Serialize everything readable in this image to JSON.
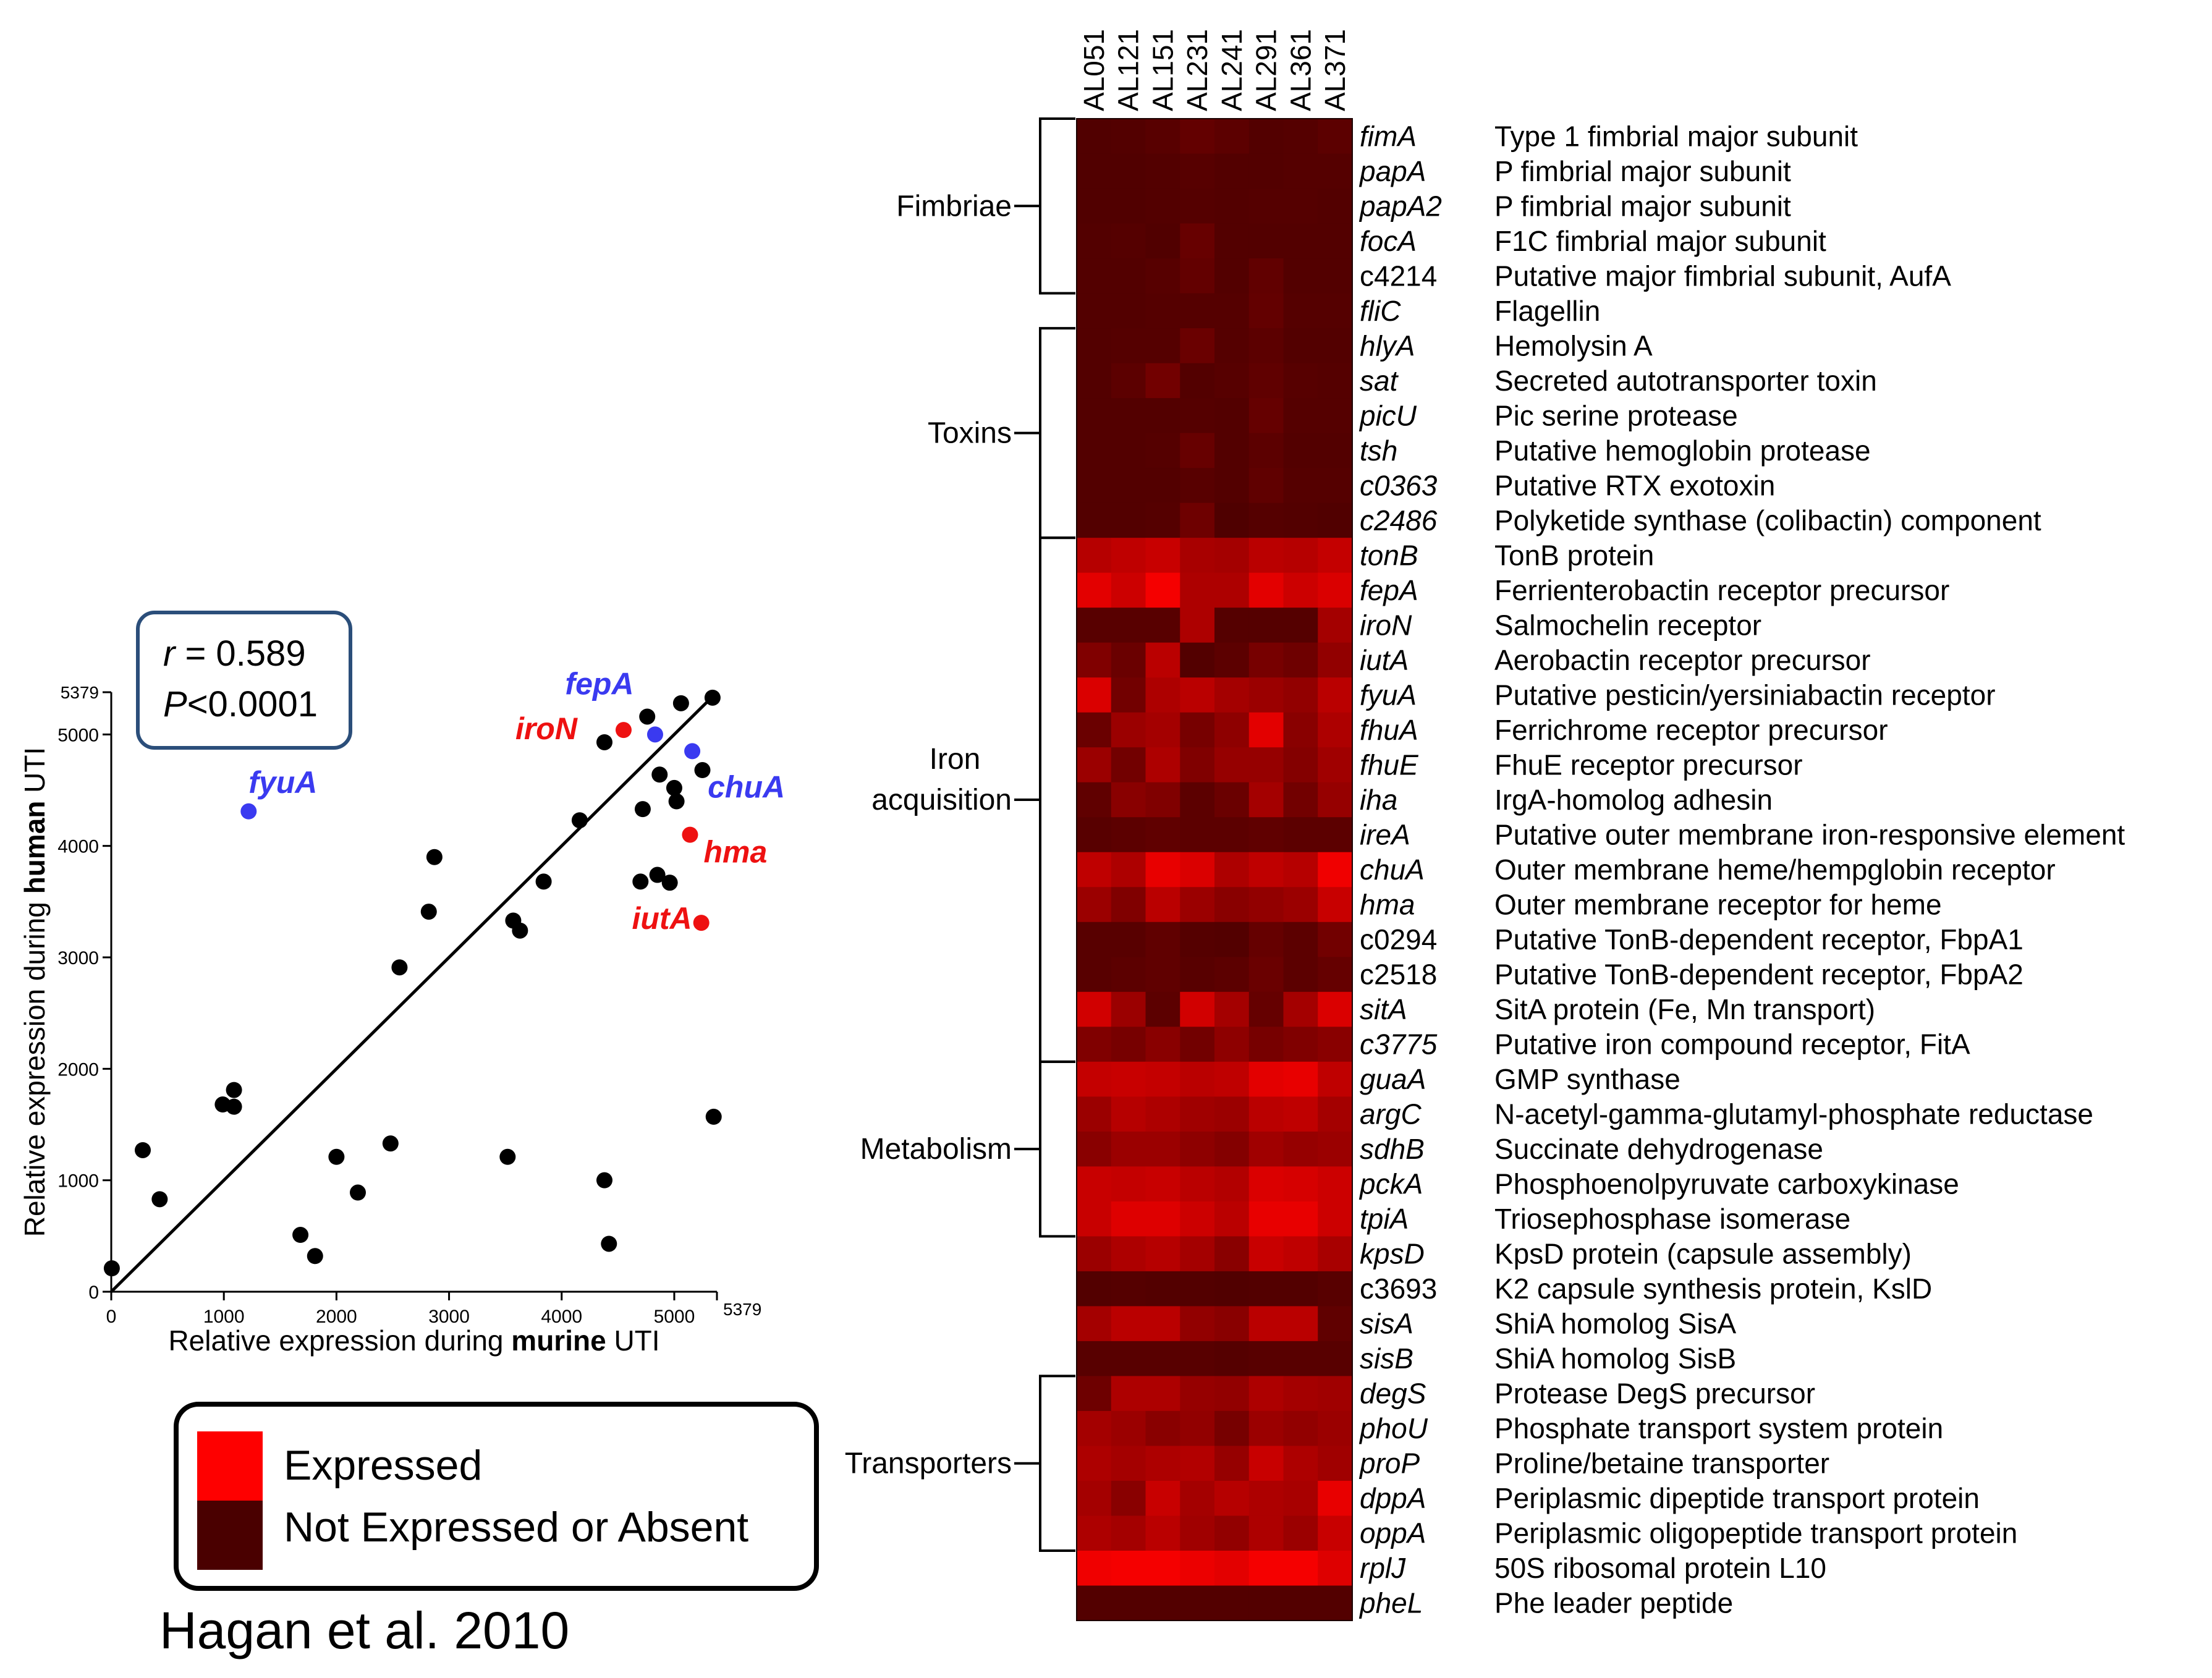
{
  "colors": {
    "black": "#000000",
    "blue": "#3a3af0",
    "red": "#ee1111",
    "box_border": "#2b4e7a"
  },
  "chart_data": [
    {
      "type": "scatter",
      "xlabel_prefix": "Relative expression during ",
      "xlabel_bold": "murine",
      "xlabel_suffix": " UTI",
      "ylabel_prefix": "Relative expression during ",
      "ylabel_bold": "human",
      "ylabel_suffix": " UTI",
      "xlim": [
        0,
        5379
      ],
      "ylim": [
        0,
        5379
      ],
      "xticks": [
        0,
        1000,
        2000,
        3000,
        4000,
        5000
      ],
      "yticks": [
        0,
        1000,
        2000,
        3000,
        4000,
        5000
      ],
      "max_label": "5379",
      "stats": {
        "r_symbol": "r",
        "r_value": " = 0.589",
        "p_symbol": "P",
        "p_value": "<0.0001"
      },
      "fit_line": {
        "x": [
          0,
          5379
        ],
        "y": [
          0,
          5379
        ]
      },
      "points": [
        {
          "x": 5,
          "y": 210
        },
        {
          "x": 280,
          "y": 1270
        },
        {
          "x": 430,
          "y": 830
        },
        {
          "x": 990,
          "y": 1680
        },
        {
          "x": 1090,
          "y": 1810
        },
        {
          "x": 1090,
          "y": 1660
        },
        {
          "x": 1680,
          "y": 510
        },
        {
          "x": 1810,
          "y": 320
        },
        {
          "x": 2000,
          "y": 1210
        },
        {
          "x": 2190,
          "y": 890
        },
        {
          "x": 2480,
          "y": 1330
        },
        {
          "x": 2560,
          "y": 2910
        },
        {
          "x": 2820,
          "y": 3410
        },
        {
          "x": 2870,
          "y": 3900
        },
        {
          "x": 3520,
          "y": 1210
        },
        {
          "x": 3570,
          "y": 3330
        },
        {
          "x": 3630,
          "y": 3240
        },
        {
          "x": 3840,
          "y": 3680
        },
        {
          "x": 4160,
          "y": 4230
        },
        {
          "x": 4380,
          "y": 1000
        },
        {
          "x": 4380,
          "y": 4930
        },
        {
          "x": 4420,
          "y": 430
        },
        {
          "x": 4700,
          "y": 3680
        },
        {
          "x": 4720,
          "y": 4330
        },
        {
          "x": 4760,
          "y": 5160
        },
        {
          "x": 4850,
          "y": 3740
        },
        {
          "x": 4870,
          "y": 4640
        },
        {
          "x": 4960,
          "y": 3670
        },
        {
          "x": 5000,
          "y": 4520
        },
        {
          "x": 5020,
          "y": 4400
        },
        {
          "x": 5060,
          "y": 5280
        },
        {
          "x": 5250,
          "y": 4680
        },
        {
          "x": 5340,
          "y": 5330
        },
        {
          "x": 5350,
          "y": 1570
        }
      ],
      "highlighted": [
        {
          "label": "fepA",
          "x": 4830,
          "y": 5000,
          "color": "blue"
        },
        {
          "label": "chuA",
          "x": 5160,
          "y": 4850,
          "color": "blue"
        },
        {
          "label": "fyuA",
          "x": 1220,
          "y": 4310,
          "color": "blue"
        },
        {
          "label": "iroN",
          "x": 4550,
          "y": 5040,
          "color": "red"
        },
        {
          "label": "hma",
          "x": 5140,
          "y": 4100,
          "color": "red"
        },
        {
          "label": "iutA",
          "x": 5240,
          "y": 3310,
          "color": "red"
        }
      ]
    },
    {
      "type": "heatmap",
      "columns": [
        "AL051",
        "AL121",
        "AL151",
        "AL231",
        "AL241",
        "AL291",
        "AL361",
        "AL371"
      ],
      "colormap": {
        "expressed": "#fe0000",
        "not_expressed": "#4a0000"
      },
      "genes": [
        "fimA",
        "papA",
        "papA2",
        "focA",
        "c4214",
        "fliC",
        "hlyA",
        "sat",
        "picU",
        "tsh",
        "c0363",
        "c2486",
        "tonB",
        "fepA",
        "iroN",
        "iutA",
        "fyuA",
        "fhuA",
        "fhuE",
        "iha",
        "ireA",
        "chuA",
        "hma",
        "c0294",
        "c2518",
        "sitA",
        "c3775",
        "guaA",
        "argC",
        "sdhB",
        "pckA",
        "tpiA",
        "kpsD",
        "c3693",
        "sisA",
        "sisB",
        "degS",
        "phoU",
        "proP",
        "dppA",
        "oppA",
        "rplJ",
        "pheL"
      ],
      "italic_genes": [
        "fimA",
        "papA",
        "papA2",
        "focA",
        "fliC",
        "hlyA",
        "sat",
        "picU",
        "tsh",
        "c0363",
        "c2486",
        "tonB",
        "fepA",
        "iroN",
        "iutA",
        "fyuA",
        "fhuA",
        "fhuE",
        "iha",
        "ireA",
        "chuA",
        "hma",
        "sitA",
        "c3775",
        "guaA",
        "argC",
        "sdhB",
        "pckA",
        "tpiA",
        "kpsD",
        "sisA",
        "sisB",
        "degS",
        "phoU",
        "proP",
        "dppA",
        "oppA",
        "rplJ",
        "pheL"
      ],
      "descriptions": [
        "Type 1 fimbrial major subunit",
        "P fimbrial major subunit",
        "P fimbrial major subunit",
        "F1C fimbrial major subunit",
        "Putative major fimbrial subunit, AufA",
        "Flagellin",
        "Hemolysin A",
        "Secreted autotransporter toxin",
        "Pic serine protease",
        "Putative hemoglobin protease",
        "Putative RTX exotoxin",
        "Polyketide synthase (colibactin) component",
        "TonB protein",
        "Ferrienterobactin receptor precursor",
        "Salmochelin receptor",
        "Aerobactin receptor precursor",
        "Putative pesticin/yersiniabactin receptor",
        "Ferrichrome receptor precursor",
        "FhuE receptor precursor",
        "IrgA-homolog adhesin",
        "Putative outer membrane iron-responsive element",
        "Outer membrane heme/hempglobin receptor",
        "Outer membrane receptor for heme",
        "Putative TonB-dependent receptor, FbpA1",
        "Putative TonB-dependent receptor, FbpA2",
        "SitA protein (Fe, Mn transport)",
        "Putative iron compound receptor, FitA",
        "GMP synthase",
        "N-acetyl-gamma-glutamyl-phosphate reductase",
        "Succinate dehydrogenase",
        "Phosphoenolpyruvate carboxykinase",
        "Triosephosphase isomerase",
        "KpsD protein (capsule assembly)",
        "K2 capsule synthesis protein, KslD",
        "ShiA homolog SisA",
        "ShiA homolog SisB",
        "Protease DegS precursor",
        "Phosphate transport system protein",
        "Proline/betaine transporter",
        "Periplasmic dipeptide transport protein",
        "Periplasmic oligopeptide transport protein",
        "50S ribosomal protein L10",
        "Phe leader peptide"
      ],
      "values": [
        [
          0.04,
          0.05,
          0.08,
          0.14,
          0.1,
          0.05,
          0.06,
          0.1
        ],
        [
          0.04,
          0.04,
          0.05,
          0.07,
          0.05,
          0.05,
          0.06,
          0.06
        ],
        [
          0.04,
          0.04,
          0.05,
          0.06,
          0.05,
          0.06,
          0.06,
          0.05
        ],
        [
          0.05,
          0.06,
          0.04,
          0.16,
          0.05,
          0.05,
          0.05,
          0.05
        ],
        [
          0.05,
          0.05,
          0.07,
          0.14,
          0.05,
          0.13,
          0.05,
          0.05
        ],
        [
          0.05,
          0.05,
          0.06,
          0.06,
          0.06,
          0.14,
          0.06,
          0.06
        ],
        [
          0.05,
          0.06,
          0.06,
          0.18,
          0.06,
          0.1,
          0.05,
          0.05
        ],
        [
          0.05,
          0.1,
          0.22,
          0.05,
          0.07,
          0.12,
          0.07,
          0.06
        ],
        [
          0.05,
          0.05,
          0.05,
          0.06,
          0.05,
          0.15,
          0.06,
          0.06
        ],
        [
          0.05,
          0.05,
          0.06,
          0.16,
          0.05,
          0.1,
          0.05,
          0.05
        ],
        [
          0.05,
          0.05,
          0.05,
          0.08,
          0.05,
          0.12,
          0.06,
          0.06
        ],
        [
          0.05,
          0.05,
          0.06,
          0.2,
          0.03,
          0.06,
          0.05,
          0.04
        ],
        [
          0.6,
          0.65,
          0.7,
          0.52,
          0.5,
          0.62,
          0.6,
          0.68
        ],
        [
          0.85,
          0.72,
          0.95,
          0.55,
          0.55,
          0.85,
          0.72,
          0.8
        ],
        [
          0.08,
          0.08,
          0.08,
          0.55,
          0.06,
          0.06,
          0.06,
          0.5
        ],
        [
          0.3,
          0.18,
          0.62,
          0.05,
          0.1,
          0.25,
          0.2,
          0.4
        ],
        [
          0.8,
          0.22,
          0.55,
          0.62,
          0.5,
          0.45,
          0.4,
          0.62
        ],
        [
          0.18,
          0.45,
          0.5,
          0.25,
          0.38,
          0.85,
          0.35,
          0.55
        ],
        [
          0.45,
          0.22,
          0.55,
          0.3,
          0.42,
          0.42,
          0.32,
          0.48
        ],
        [
          0.12,
          0.35,
          0.3,
          0.1,
          0.18,
          0.5,
          0.22,
          0.42
        ],
        [
          0.08,
          0.1,
          0.12,
          0.1,
          0.1,
          0.12,
          0.1,
          0.1
        ],
        [
          0.65,
          0.55,
          0.88,
          0.8,
          0.55,
          0.65,
          0.6,
          0.92
        ],
        [
          0.45,
          0.3,
          0.62,
          0.45,
          0.35,
          0.4,
          0.45,
          0.7
        ],
        [
          0.08,
          0.08,
          0.12,
          0.06,
          0.05,
          0.15,
          0.1,
          0.22
        ],
        [
          0.08,
          0.1,
          0.12,
          0.08,
          0.1,
          0.18,
          0.1,
          0.15
        ],
        [
          0.75,
          0.45,
          0.1,
          0.75,
          0.5,
          0.15,
          0.5,
          0.8
        ],
        [
          0.3,
          0.25,
          0.35,
          0.22,
          0.38,
          0.25,
          0.3,
          0.35
        ],
        [
          0.68,
          0.7,
          0.68,
          0.62,
          0.65,
          0.85,
          0.88,
          0.65
        ],
        [
          0.45,
          0.6,
          0.55,
          0.48,
          0.45,
          0.62,
          0.65,
          0.5
        ],
        [
          0.35,
          0.45,
          0.45,
          0.38,
          0.32,
          0.48,
          0.42,
          0.45
        ],
        [
          0.7,
          0.68,
          0.7,
          0.62,
          0.58,
          0.8,
          0.78,
          0.72
        ],
        [
          0.7,
          0.82,
          0.82,
          0.72,
          0.62,
          0.88,
          0.88,
          0.72
        ],
        [
          0.45,
          0.55,
          0.6,
          0.5,
          0.35,
          0.7,
          0.65,
          0.52
        ],
        [
          0.05,
          0.06,
          0.05,
          0.05,
          0.04,
          0.05,
          0.05,
          0.08
        ],
        [
          0.5,
          0.62,
          0.62,
          0.4,
          0.35,
          0.62,
          0.62,
          0.12
        ],
        [
          0.08,
          0.08,
          0.08,
          0.08,
          0.06,
          0.08,
          0.08,
          0.08
        ],
        [
          0.2,
          0.55,
          0.55,
          0.42,
          0.4,
          0.55,
          0.5,
          0.48
        ],
        [
          0.5,
          0.45,
          0.35,
          0.4,
          0.25,
          0.45,
          0.4,
          0.45
        ],
        [
          0.55,
          0.5,
          0.55,
          0.58,
          0.42,
          0.7,
          0.55,
          0.48
        ],
        [
          0.5,
          0.35,
          0.7,
          0.5,
          0.6,
          0.55,
          0.52,
          0.88
        ],
        [
          0.55,
          0.5,
          0.62,
          0.48,
          0.4,
          0.55,
          0.45,
          0.7
        ],
        [
          0.92,
          0.95,
          0.95,
          0.9,
          0.85,
          0.95,
          0.95,
          0.82
        ],
        [
          0.05,
          0.05,
          0.05,
          0.05,
          0.05,
          0.05,
          0.05,
          0.05
        ]
      ],
      "groups": [
        {
          "name": "Fimbriae",
          "line2": "",
          "start": 0,
          "end": 4
        },
        {
          "name": "Toxins",
          "line2": "",
          "start": 6,
          "end": 11
        },
        {
          "name": "Iron",
          "line2": "acquisition",
          "start": 12,
          "end": 26
        },
        {
          "name": "Metabolism",
          "line2": "",
          "start": 27,
          "end": 31
        },
        {
          "name": "Transporters",
          "line2": "",
          "start": 36,
          "end": 40
        }
      ]
    }
  ],
  "legend": {
    "expressed": "Expressed",
    "not_expressed": "Not Expressed or Absent"
  },
  "citation": "Hagan et al. 2010"
}
